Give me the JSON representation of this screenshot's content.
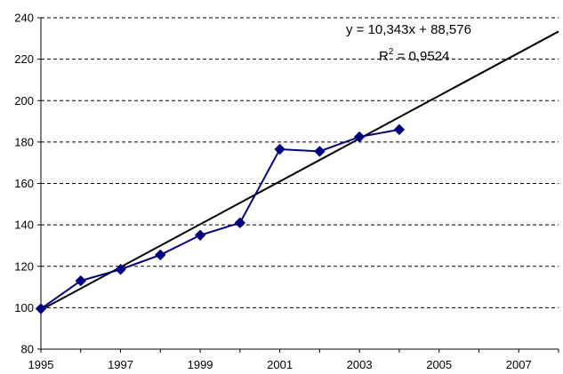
{
  "chart_data": {
    "type": "line",
    "title": "",
    "xlabel": "",
    "ylabel": "",
    "xlim": [
      1995,
      2008
    ],
    "ylim": [
      80,
      240
    ],
    "xticks": [
      "1995",
      "1997",
      "1999",
      "2001",
      "2003",
      "2005",
      "2007"
    ],
    "yticks": [
      "80",
      "100",
      "120",
      "140",
      "160",
      "180",
      "200",
      "220",
      "240"
    ],
    "grid": "horizontal dashed",
    "legend": "none",
    "series": [
      {
        "color": "#000080",
        "marker": "diamond",
        "x": [
          1995,
          1996,
          1997,
          1998,
          1999,
          2000,
          2001,
          2002,
          2003,
          2004
        ],
        "y": [
          99.5,
          113,
          118.5,
          125.5,
          135,
          141,
          176.5,
          175.5,
          182.5,
          186
        ]
      }
    ],
    "trendline": {
      "type": "linear",
      "color": "#000000",
      "x": [
        1995,
        2008
      ],
      "slope": 10.343,
      "intercept": 88.576,
      "equation_label": "y = 10,343x + 88,576",
      "r2_prefix": "R",
      "r2_sup": "2",
      "r2_suffix": " = 0,9524"
    }
  }
}
